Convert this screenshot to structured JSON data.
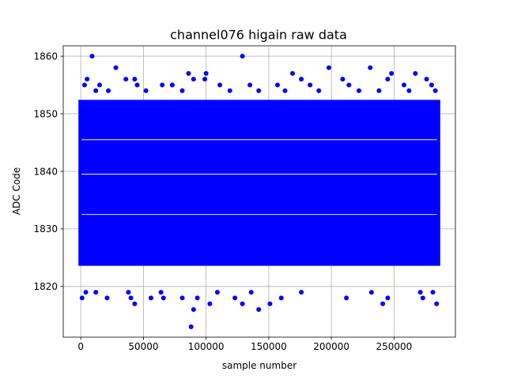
{
  "chart_data": {
    "type": "scatter",
    "title": "channel076 higain raw data",
    "xlabel": "sample number",
    "ylabel": "ADC Code",
    "xlim": [
      -14000,
      299000
    ],
    "ylim": [
      1811.2,
      1861.8
    ],
    "xticks": [
      0,
      50000,
      100000,
      150000,
      200000,
      250000
    ],
    "xtick_labels": [
      "0",
      "50000",
      "100000",
      "150000",
      "200000",
      "250000"
    ],
    "yticks": [
      1820,
      1830,
      1840,
      1850,
      1860
    ],
    "ytick_labels": [
      "1820",
      "1830",
      "1840",
      "1850",
      "1860"
    ],
    "grid": true,
    "marker_color": "#0000ff",
    "core_band": {
      "x_range": [
        0,
        285000
      ],
      "y_range": [
        1824,
        1852
      ],
      "gap_lines_y": [
        1845.5,
        1839.5,
        1832.5
      ]
    },
    "outliers": [
      {
        "x": 9000,
        "y": 1860
      },
      {
        "x": 129000,
        "y": 1860
      },
      {
        "x": 28000,
        "y": 1858
      },
      {
        "x": 198000,
        "y": 1858
      },
      {
        "x": 231000,
        "y": 1858
      },
      {
        "x": 86000,
        "y": 1857
      },
      {
        "x": 100000,
        "y": 1857
      },
      {
        "x": 169000,
        "y": 1857
      },
      {
        "x": 248000,
        "y": 1857
      },
      {
        "x": 267000,
        "y": 1857
      },
      {
        "x": 5000,
        "y": 1856
      },
      {
        "x": 36000,
        "y": 1856
      },
      {
        "x": 43000,
        "y": 1856
      },
      {
        "x": 90000,
        "y": 1856
      },
      {
        "x": 99000,
        "y": 1856
      },
      {
        "x": 176000,
        "y": 1856
      },
      {
        "x": 209000,
        "y": 1856
      },
      {
        "x": 245000,
        "y": 1856
      },
      {
        "x": 276000,
        "y": 1856
      },
      {
        "x": 3000,
        "y": 1855
      },
      {
        "x": 15000,
        "y": 1855
      },
      {
        "x": 45000,
        "y": 1855
      },
      {
        "x": 65000,
        "y": 1855
      },
      {
        "x": 73000,
        "y": 1855
      },
      {
        "x": 111000,
        "y": 1855
      },
      {
        "x": 135000,
        "y": 1855
      },
      {
        "x": 157000,
        "y": 1855
      },
      {
        "x": 183000,
        "y": 1855
      },
      {
        "x": 214000,
        "y": 1855
      },
      {
        "x": 258000,
        "y": 1855
      },
      {
        "x": 280000,
        "y": 1855
      },
      {
        "x": 12000,
        "y": 1854
      },
      {
        "x": 22000,
        "y": 1854
      },
      {
        "x": 52000,
        "y": 1854
      },
      {
        "x": 81000,
        "y": 1854
      },
      {
        "x": 119000,
        "y": 1854
      },
      {
        "x": 142000,
        "y": 1854
      },
      {
        "x": 163000,
        "y": 1854
      },
      {
        "x": 190000,
        "y": 1854
      },
      {
        "x": 222000,
        "y": 1854
      },
      {
        "x": 238000,
        "y": 1854
      },
      {
        "x": 262000,
        "y": 1854
      },
      {
        "x": 283000,
        "y": 1854
      },
      {
        "x": 4000,
        "y": 1819
      },
      {
        "x": 12000,
        "y": 1819
      },
      {
        "x": 38000,
        "y": 1819
      },
      {
        "x": 64000,
        "y": 1819
      },
      {
        "x": 109000,
        "y": 1819
      },
      {
        "x": 136000,
        "y": 1819
      },
      {
        "x": 176000,
        "y": 1819
      },
      {
        "x": 232000,
        "y": 1819
      },
      {
        "x": 271000,
        "y": 1819
      },
      {
        "x": 281000,
        "y": 1819
      },
      {
        "x": 1000,
        "y": 1818
      },
      {
        "x": 21000,
        "y": 1818
      },
      {
        "x": 40000,
        "y": 1818
      },
      {
        "x": 56000,
        "y": 1818
      },
      {
        "x": 66000,
        "y": 1818
      },
      {
        "x": 81000,
        "y": 1818
      },
      {
        "x": 93000,
        "y": 1818
      },
      {
        "x": 123000,
        "y": 1818
      },
      {
        "x": 160000,
        "y": 1818
      },
      {
        "x": 212000,
        "y": 1818
      },
      {
        "x": 245000,
        "y": 1818
      },
      {
        "x": 273000,
        "y": 1818
      },
      {
        "x": 43000,
        "y": 1817
      },
      {
        "x": 103000,
        "y": 1817
      },
      {
        "x": 129000,
        "y": 1817
      },
      {
        "x": 151000,
        "y": 1817
      },
      {
        "x": 241000,
        "y": 1817
      },
      {
        "x": 284000,
        "y": 1817
      },
      {
        "x": 90000,
        "y": 1816
      },
      {
        "x": 142000,
        "y": 1816
      },
      {
        "x": 88000,
        "y": 1813
      }
    ]
  }
}
